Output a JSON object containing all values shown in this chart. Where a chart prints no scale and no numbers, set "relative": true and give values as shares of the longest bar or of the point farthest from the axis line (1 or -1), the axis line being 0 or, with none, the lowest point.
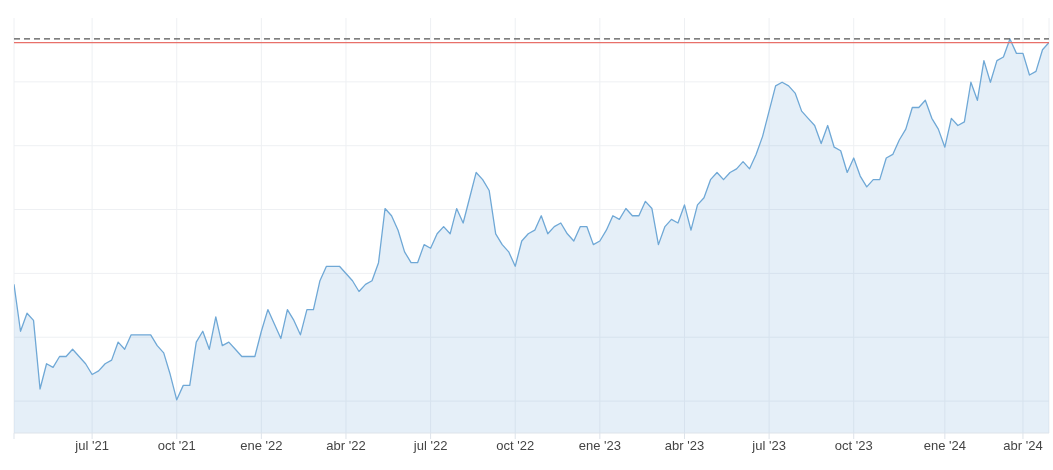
{
  "chart_data": {
    "type": "area",
    "relative": true,
    "grid": true,
    "categories": [
      null,
      null,
      null,
      null,
      null,
      null,
      null,
      null,
      null,
      null,
      null,
      null,
      "jul '21",
      null,
      null,
      null,
      null,
      null,
      null,
      null,
      null,
      null,
      null,
      null,
      null,
      "oct '21",
      null,
      null,
      null,
      null,
      null,
      null,
      null,
      null,
      null,
      null,
      null,
      null,
      "ene '22",
      null,
      null,
      null,
      null,
      null,
      null,
      null,
      null,
      null,
      null,
      null,
      null,
      "abr '22",
      null,
      null,
      null,
      null,
      null,
      null,
      null,
      null,
      null,
      null,
      null,
      null,
      "jul '22",
      null,
      null,
      null,
      null,
      null,
      null,
      null,
      null,
      null,
      null,
      null,
      null,
      "oct '22",
      null,
      null,
      null,
      null,
      null,
      null,
      null,
      null,
      null,
      null,
      null,
      null,
      "ene '23",
      null,
      null,
      null,
      null,
      null,
      null,
      null,
      null,
      null,
      null,
      null,
      null,
      "abr '23",
      null,
      null,
      null,
      null,
      null,
      null,
      null,
      null,
      null,
      null,
      null,
      null,
      "jul '23",
      null,
      null,
      null,
      null,
      null,
      null,
      null,
      null,
      null,
      null,
      null,
      null,
      "oct '23",
      null,
      null,
      null,
      null,
      null,
      null,
      null,
      null,
      null,
      null,
      null,
      null,
      null,
      "ene '24",
      null,
      null,
      null,
      null,
      null,
      null,
      null,
      null,
      null,
      null,
      null,
      "abr '24",
      null,
      null,
      null,
      null
    ],
    "series": [
      {
        "color": "#6fa8d6",
        "values": [
          0.32,
          0.19,
          0.24,
          0.22,
          0.03,
          0.1,
          0.09,
          0.12,
          0.12,
          0.14,
          0.12,
          0.1,
          0.07,
          0.08,
          0.1,
          0.11,
          0.16,
          0.14,
          0.18,
          0.18,
          0.18,
          0.18,
          0.15,
          0.13,
          0.07,
          0.0,
          0.04,
          0.04,
          0.16,
          0.19,
          0.14,
          0.23,
          0.15,
          0.16,
          0.14,
          0.12,
          0.12,
          0.12,
          0.19,
          0.25,
          0.21,
          0.17,
          0.25,
          0.22,
          0.18,
          0.25,
          0.25,
          0.33,
          0.37,
          0.37,
          0.37,
          0.35,
          0.33,
          0.3,
          0.32,
          0.33,
          0.38,
          0.53,
          0.51,
          0.47,
          0.41,
          0.38,
          0.38,
          0.43,
          0.42,
          0.46,
          0.48,
          0.46,
          0.53,
          0.49,
          0.56,
          0.63,
          0.61,
          0.58,
          0.46,
          0.43,
          0.41,
          0.37,
          0.44,
          0.46,
          0.47,
          0.51,
          0.46,
          0.48,
          0.49,
          0.46,
          0.44,
          0.48,
          0.48,
          0.43,
          0.44,
          0.47,
          0.51,
          0.5,
          0.53,
          0.51,
          0.51,
          0.55,
          0.53,
          0.43,
          0.48,
          0.5,
          0.49,
          0.54,
          0.47,
          0.54,
          0.56,
          0.61,
          0.63,
          0.61,
          0.63,
          0.64,
          0.66,
          0.64,
          0.68,
          0.73,
          0.8,
          0.87,
          0.88,
          0.87,
          0.85,
          0.8,
          0.78,
          0.76,
          0.71,
          0.76,
          0.7,
          0.69,
          0.63,
          0.67,
          0.62,
          0.59,
          0.61,
          0.61,
          0.67,
          0.68,
          0.72,
          0.75,
          0.81,
          0.81,
          0.83,
          0.78,
          0.75,
          0.7,
          0.78,
          0.76,
          0.77,
          0.88,
          0.83,
          0.94,
          0.88,
          0.94,
          0.95,
          1.0,
          0.96,
          0.96,
          0.9,
          0.91,
          0.97,
          0.99
        ]
      }
    ],
    "ref_lines": [
      {
        "axis": "y",
        "value": 1.0,
        "color": "#555555",
        "line_style": "dashed"
      },
      {
        "axis": "y",
        "value": 0.99,
        "color": "#e8706a",
        "line_style": "solid"
      }
    ]
  }
}
